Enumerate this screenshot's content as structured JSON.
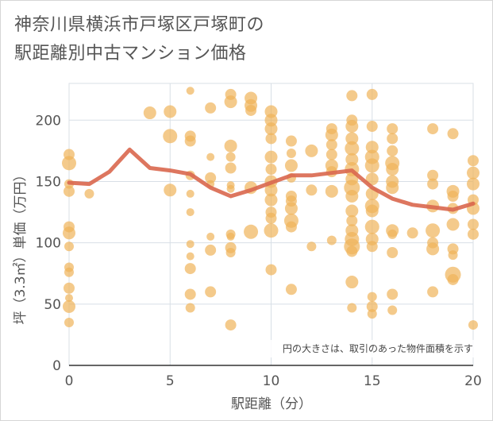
{
  "title_line1": "神奈川県横浜市戸塚区戸塚町の",
  "title_line2": "駅距離別中古マンション価格",
  "chart_data": {
    "type": "scatter",
    "title": "神奈川県横浜市戸塚区戸塚町の駅距離別中古マンション価格",
    "xlabel": "駅距離（分）",
    "ylabel": "坪（3.3㎡）単価（万円）",
    "xlim": [
      0,
      20
    ],
    "ylim": [
      0,
      230
    ],
    "xticks": [
      0,
      5,
      10,
      15,
      20
    ],
    "yticks": [
      0,
      50,
      100,
      150,
      200
    ],
    "grid": true,
    "annotation": "円の大きさは、取引のあった物件面積を示す",
    "colors": {
      "bubble": "#f0b45a",
      "line": "#d9674e",
      "grid": "#d8dfe6",
      "text": "#555555"
    },
    "scatter_points": [
      {
        "x": 0,
        "y": 172,
        "s": 7
      },
      {
        "x": 0,
        "y": 165,
        "s": 9
      },
      {
        "x": 0,
        "y": 148,
        "s": 6
      },
      {
        "x": 0,
        "y": 142,
        "s": 7
      },
      {
        "x": 0,
        "y": 113,
        "s": 7
      },
      {
        "x": 0,
        "y": 108,
        "s": 8
      },
      {
        "x": 0,
        "y": 97,
        "s": 6
      },
      {
        "x": 0,
        "y": 80,
        "s": 6
      },
      {
        "x": 0,
        "y": 76,
        "s": 6
      },
      {
        "x": 0,
        "y": 63,
        "s": 7
      },
      {
        "x": 0,
        "y": 55,
        "s": 5
      },
      {
        "x": 0,
        "y": 48,
        "s": 8
      },
      {
        "x": 0,
        "y": 35,
        "s": 6
      },
      {
        "x": 1,
        "y": 140,
        "s": 6
      },
      {
        "x": 4,
        "y": 206,
        "s": 8
      },
      {
        "x": 5,
        "y": 207,
        "s": 8
      },
      {
        "x": 5,
        "y": 187,
        "s": 9
      },
      {
        "x": 5,
        "y": 143,
        "s": 8
      },
      {
        "x": 6,
        "y": 224,
        "s": 5
      },
      {
        "x": 6,
        "y": 187,
        "s": 7
      },
      {
        "x": 6,
        "y": 183,
        "s": 7
      },
      {
        "x": 6,
        "y": 155,
        "s": 6
      },
      {
        "x": 6,
        "y": 140,
        "s": 5
      },
      {
        "x": 6,
        "y": 125,
        "s": 5
      },
      {
        "x": 6,
        "y": 99,
        "s": 5
      },
      {
        "x": 6,
        "y": 89,
        "s": 5
      },
      {
        "x": 6,
        "y": 79,
        "s": 7
      },
      {
        "x": 6,
        "y": 58,
        "s": 7
      },
      {
        "x": 6,
        "y": 47,
        "s": 6
      },
      {
        "x": 7,
        "y": 210,
        "s": 7
      },
      {
        "x": 7,
        "y": 170,
        "s": 5
      },
      {
        "x": 7,
        "y": 153,
        "s": 7
      },
      {
        "x": 7,
        "y": 148,
        "s": 5
      },
      {
        "x": 7,
        "y": 105,
        "s": 5
      },
      {
        "x": 7,
        "y": 94,
        "s": 7
      },
      {
        "x": 7,
        "y": 60,
        "s": 7
      },
      {
        "x": 8,
        "y": 221,
        "s": 7
      },
      {
        "x": 8,
        "y": 215,
        "s": 8
      },
      {
        "x": 8,
        "y": 179,
        "s": 8
      },
      {
        "x": 8,
        "y": 170,
        "s": 6
      },
      {
        "x": 8,
        "y": 161,
        "s": 7
      },
      {
        "x": 8,
        "y": 147,
        "s": 5
      },
      {
        "x": 8,
        "y": 144,
        "s": 5
      },
      {
        "x": 8,
        "y": 107,
        "s": 6
      },
      {
        "x": 8,
        "y": 105,
        "s": 5
      },
      {
        "x": 8,
        "y": 96,
        "s": 7
      },
      {
        "x": 8,
        "y": 92,
        "s": 6
      },
      {
        "x": 8,
        "y": 33,
        "s": 7
      },
      {
        "x": 9,
        "y": 218,
        "s": 8
      },
      {
        "x": 9,
        "y": 212,
        "s": 8
      },
      {
        "x": 9,
        "y": 208,
        "s": 7
      },
      {
        "x": 9,
        "y": 145,
        "s": 8
      },
      {
        "x": 9,
        "y": 109,
        "s": 9
      },
      {
        "x": 10,
        "y": 207,
        "s": 8
      },
      {
        "x": 10,
        "y": 200,
        "s": 8
      },
      {
        "x": 10,
        "y": 193,
        "s": 8
      },
      {
        "x": 10,
        "y": 185,
        "s": 7
      },
      {
        "x": 10,
        "y": 170,
        "s": 8
      },
      {
        "x": 10,
        "y": 160,
        "s": 7
      },
      {
        "x": 10,
        "y": 150,
        "s": 8
      },
      {
        "x": 10,
        "y": 143,
        "s": 8
      },
      {
        "x": 10,
        "y": 135,
        "s": 8
      },
      {
        "x": 10,
        "y": 125,
        "s": 7
      },
      {
        "x": 10,
        "y": 120,
        "s": 7
      },
      {
        "x": 10,
        "y": 110,
        "s": 9
      },
      {
        "x": 10,
        "y": 78,
        "s": 7
      },
      {
        "x": 11,
        "y": 183,
        "s": 7
      },
      {
        "x": 11,
        "y": 173,
        "s": 6
      },
      {
        "x": 11,
        "y": 163,
        "s": 8
      },
      {
        "x": 11,
        "y": 153,
        "s": 6
      },
      {
        "x": 11,
        "y": 138,
        "s": 7
      },
      {
        "x": 11,
        "y": 134,
        "s": 7
      },
      {
        "x": 11,
        "y": 128,
        "s": 8
      },
      {
        "x": 11,
        "y": 118,
        "s": 9
      },
      {
        "x": 11,
        "y": 113,
        "s": 7
      },
      {
        "x": 11,
        "y": 62,
        "s": 7
      },
      {
        "x": 12,
        "y": 175,
        "s": 8
      },
      {
        "x": 12,
        "y": 143,
        "s": 7
      },
      {
        "x": 12,
        "y": 97,
        "s": 6
      },
      {
        "x": 13,
        "y": 193,
        "s": 7
      },
      {
        "x": 13,
        "y": 188,
        "s": 8
      },
      {
        "x": 13,
        "y": 180,
        "s": 7
      },
      {
        "x": 13,
        "y": 172,
        "s": 7
      },
      {
        "x": 13,
        "y": 163,
        "s": 8
      },
      {
        "x": 13,
        "y": 158,
        "s": 7
      },
      {
        "x": 13,
        "y": 142,
        "s": 8
      },
      {
        "x": 13,
        "y": 102,
        "s": 6
      },
      {
        "x": 14,
        "y": 220,
        "s": 7
      },
      {
        "x": 14,
        "y": 200,
        "s": 7
      },
      {
        "x": 14,
        "y": 195,
        "s": 8
      },
      {
        "x": 14,
        "y": 185,
        "s": 8
      },
      {
        "x": 14,
        "y": 177,
        "s": 9
      },
      {
        "x": 14,
        "y": 168,
        "s": 8
      },
      {
        "x": 14,
        "y": 160,
        "s": 9
      },
      {
        "x": 14,
        "y": 152,
        "s": 8
      },
      {
        "x": 14,
        "y": 145,
        "s": 10
      },
      {
        "x": 14,
        "y": 138,
        "s": 8
      },
      {
        "x": 14,
        "y": 126,
        "s": 8
      },
      {
        "x": 14,
        "y": 118,
        "s": 7
      },
      {
        "x": 14,
        "y": 110,
        "s": 8
      },
      {
        "x": 14,
        "y": 103,
        "s": 9
      },
      {
        "x": 14,
        "y": 97,
        "s": 10
      },
      {
        "x": 14,
        "y": 93,
        "s": 7
      },
      {
        "x": 14,
        "y": 68,
        "s": 8
      },
      {
        "x": 14,
        "y": 47,
        "s": 6
      },
      {
        "x": 15,
        "y": 221,
        "s": 7
      },
      {
        "x": 15,
        "y": 195,
        "s": 7
      },
      {
        "x": 15,
        "y": 178,
        "s": 8
      },
      {
        "x": 15,
        "y": 170,
        "s": 9
      },
      {
        "x": 15,
        "y": 163,
        "s": 9
      },
      {
        "x": 15,
        "y": 152,
        "s": 8
      },
      {
        "x": 15,
        "y": 140,
        "s": 8
      },
      {
        "x": 15,
        "y": 130,
        "s": 9
      },
      {
        "x": 15,
        "y": 126,
        "s": 8
      },
      {
        "x": 15,
        "y": 113,
        "s": 9
      },
      {
        "x": 15,
        "y": 103,
        "s": 8
      },
      {
        "x": 15,
        "y": 97,
        "s": 7
      },
      {
        "x": 15,
        "y": 56,
        "s": 6
      },
      {
        "x": 15,
        "y": 48,
        "s": 7
      },
      {
        "x": 15,
        "y": 42,
        "s": 6
      },
      {
        "x": 16,
        "y": 193,
        "s": 7
      },
      {
        "x": 16,
        "y": 185,
        "s": 7
      },
      {
        "x": 16,
        "y": 175,
        "s": 7
      },
      {
        "x": 16,
        "y": 165,
        "s": 9
      },
      {
        "x": 16,
        "y": 160,
        "s": 8
      },
      {
        "x": 16,
        "y": 150,
        "s": 8
      },
      {
        "x": 16,
        "y": 145,
        "s": 8
      },
      {
        "x": 16,
        "y": 110,
        "s": 8
      },
      {
        "x": 16,
        "y": 107,
        "s": 6
      },
      {
        "x": 16,
        "y": 92,
        "s": 7
      },
      {
        "x": 16,
        "y": 58,
        "s": 7
      },
      {
        "x": 16,
        "y": 45,
        "s": 6
      },
      {
        "x": 17,
        "y": 108,
        "s": 7
      },
      {
        "x": 18,
        "y": 193,
        "s": 7
      },
      {
        "x": 18,
        "y": 155,
        "s": 7
      },
      {
        "x": 18,
        "y": 148,
        "s": 7
      },
      {
        "x": 18,
        "y": 130,
        "s": 8
      },
      {
        "x": 18,
        "y": 110,
        "s": 9
      },
      {
        "x": 18,
        "y": 100,
        "s": 7
      },
      {
        "x": 18,
        "y": 95,
        "s": 8
      },
      {
        "x": 18,
        "y": 60,
        "s": 7
      },
      {
        "x": 19,
        "y": 189,
        "s": 7
      },
      {
        "x": 19,
        "y": 142,
        "s": 8
      },
      {
        "x": 19,
        "y": 138,
        "s": 7
      },
      {
        "x": 19,
        "y": 128,
        "s": 7
      },
      {
        "x": 19,
        "y": 115,
        "s": 8
      },
      {
        "x": 19,
        "y": 95,
        "s": 7
      },
      {
        "x": 19,
        "y": 90,
        "s": 6
      },
      {
        "x": 19,
        "y": 74,
        "s": 10
      },
      {
        "x": 19,
        "y": 70,
        "s": 7
      },
      {
        "x": 20,
        "y": 167,
        "s": 7
      },
      {
        "x": 20,
        "y": 157,
        "s": 8
      },
      {
        "x": 20,
        "y": 148,
        "s": 8
      },
      {
        "x": 20,
        "y": 135,
        "s": 7
      },
      {
        "x": 20,
        "y": 128,
        "s": 8
      },
      {
        "x": 20,
        "y": 115,
        "s": 7
      },
      {
        "x": 20,
        "y": 107,
        "s": 7
      },
      {
        "x": 20,
        "y": 33,
        "s": 6
      }
    ],
    "series": [
      {
        "type": "line",
        "x": [
          0,
          1,
          2,
          3,
          4,
          5,
          6,
          7,
          8,
          9,
          10,
          11,
          12,
          13,
          14,
          15,
          16,
          17,
          18,
          19,
          20
        ],
        "values": [
          149,
          148,
          158,
          176,
          161,
          159,
          156,
          145,
          138,
          143,
          149,
          155,
          155,
          157,
          159,
          145,
          136,
          131,
          129,
          127,
          132
        ]
      }
    ]
  }
}
